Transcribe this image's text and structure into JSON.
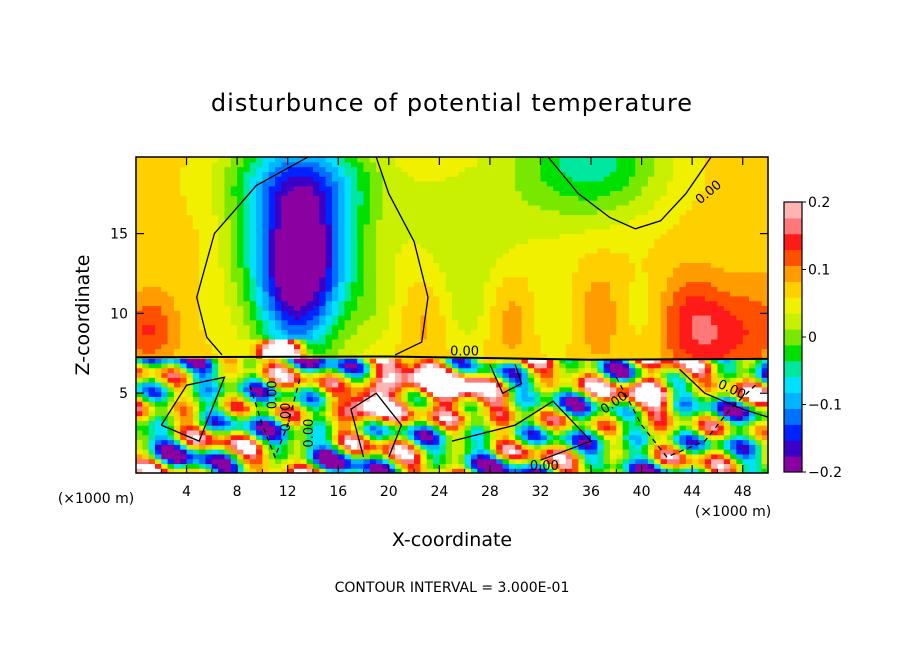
{
  "chart_data": {
    "type": "heatmap",
    "title": "disturbunce of potential temperature",
    "xlabel": "X-coordinate",
    "ylabel": "Z-coordinate",
    "x_unit": "(×1000 m)",
    "y_unit": "(×1000 m)",
    "xlim": [
      0,
      50
    ],
    "ylim": [
      0,
      19.8
    ],
    "xticks": [
      "4",
      "8",
      "12",
      "16",
      "20",
      "24",
      "28",
      "32",
      "36",
      "40",
      "44",
      "48"
    ],
    "yticks": [
      "5",
      "10",
      "15"
    ],
    "colorbar": {
      "range": [
        -0.2,
        0.2
      ],
      "ticks": [
        "0.2",
        "0.1",
        "0",
        "−0.1",
        "−0.2"
      ],
      "colors": [
        "#8a00a0",
        "#3a00c8",
        "#0022ff",
        "#0070ff",
        "#00b4ff",
        "#00e0ff",
        "#00e8a0",
        "#00e000",
        "#78e800",
        "#c8f000",
        "#f0f000",
        "#ffd000",
        "#ff9c00",
        "#ff5000",
        "#ff1a1a",
        "#ff7878",
        "#ffb4b4"
      ]
    },
    "contour_labels": [
      "0.00",
      "0.00",
      "0.00",
      "0.00",
      "0.00",
      "0.00",
      "0.00",
      "0.00"
    ],
    "annotation": "CONTOUR INTERVAL = 3.000E-01"
  }
}
